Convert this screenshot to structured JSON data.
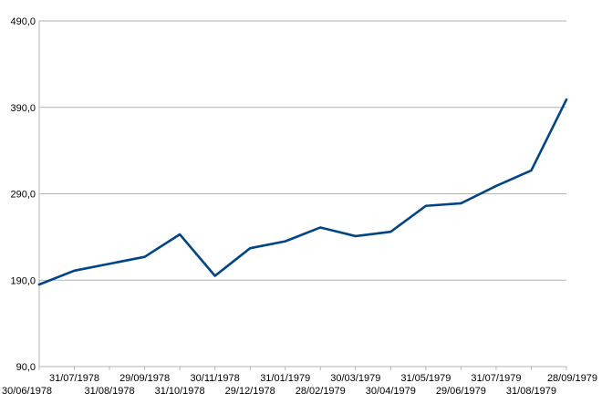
{
  "chart_data": {
    "type": "line",
    "title": "",
    "xlabel": "",
    "ylabel": "",
    "ylim": [
      90,
      490
    ],
    "yticks": [
      "90,0",
      "190,0",
      "290,0",
      "390,0",
      "490,0"
    ],
    "ytick_values": [
      90,
      190,
      290,
      390,
      490
    ],
    "grid": true,
    "legend": "none",
    "line_color": "#004586",
    "categories": [
      "30/06/1978",
      "31/07/1978",
      "31/08/1978",
      "29/09/1978",
      "31/10/1978",
      "30/11/1978",
      "29/12/1978",
      "31/01/1979",
      "28/02/1979",
      "30/03/1979",
      "30/04/1979",
      "31/05/1979",
      "29/06/1979",
      "31/07/1979",
      "31/08/1979",
      "28/09/1979"
    ],
    "series": [
      {
        "values": [
          185,
          201,
          209,
          217,
          243,
          195,
          227,
          235,
          251,
          241,
          246,
          276,
          279,
          299,
          317,
          399
        ]
      }
    ]
  }
}
